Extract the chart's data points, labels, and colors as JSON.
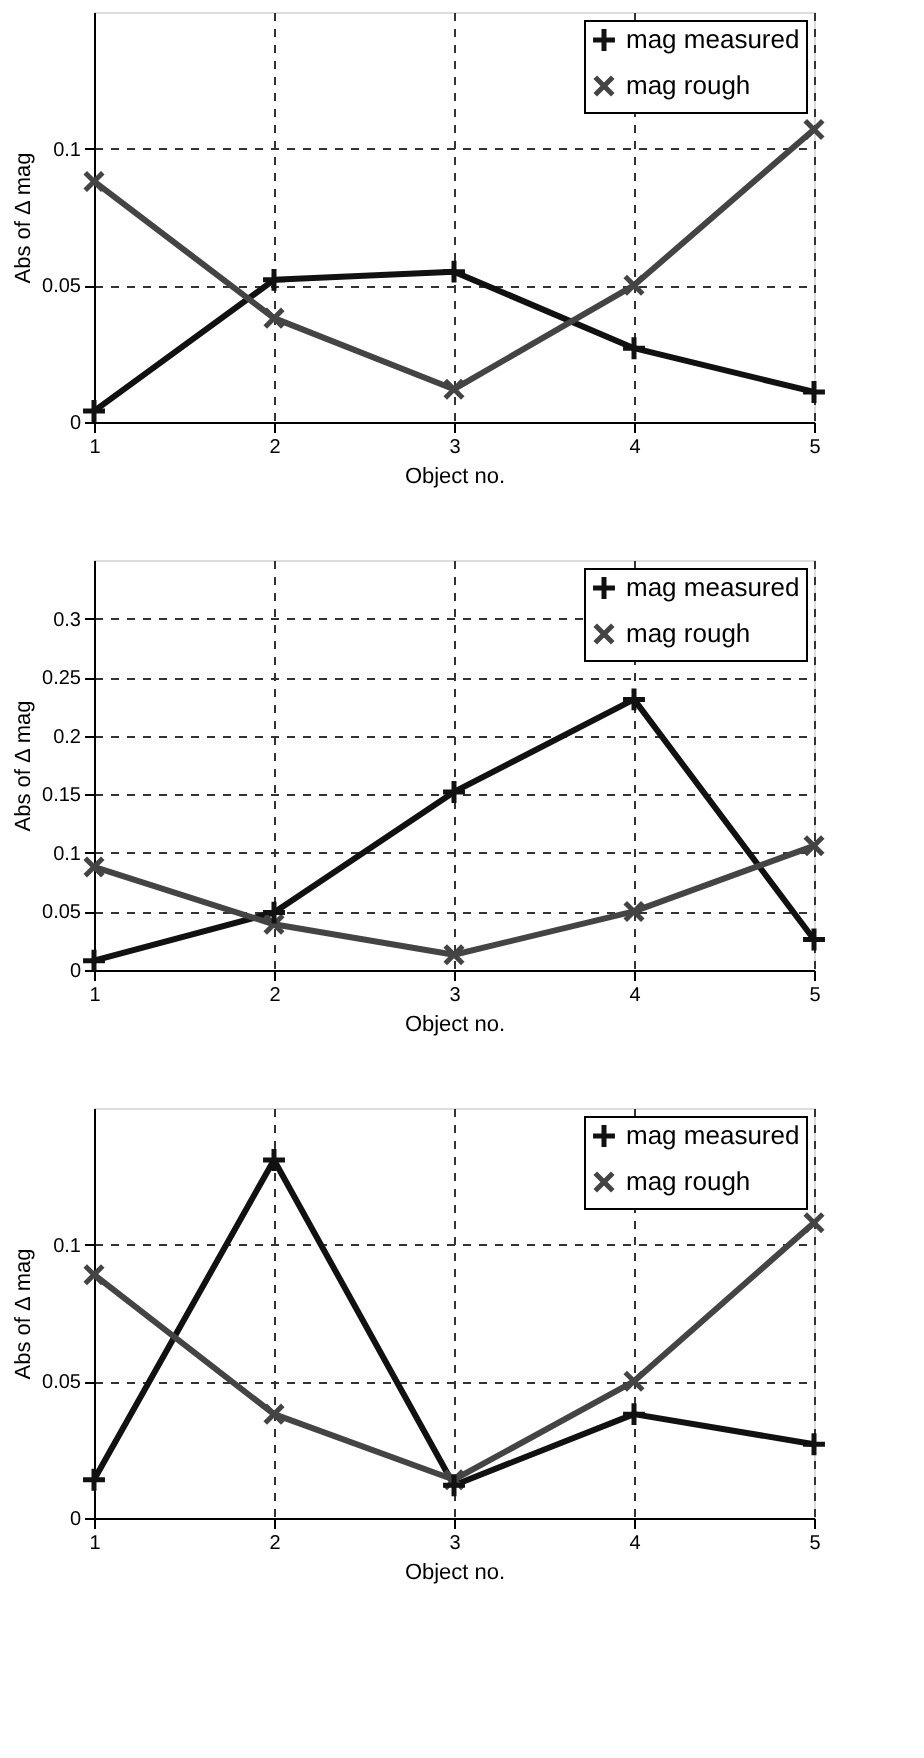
{
  "chart_data": [
    {
      "type": "line",
      "xlabel": "Object no.",
      "ylabel": "Abs of Δ mag",
      "x": [
        1,
        2,
        3,
        4,
        5
      ],
      "xlim": [
        1,
        5
      ],
      "xticks": [
        1,
        2,
        3,
        4,
        5
      ],
      "ylim": [
        0,
        0.15
      ],
      "yticks": [
        0,
        0.05,
        0.1
      ],
      "grid": true,
      "legend": "top right",
      "line_style": "solid",
      "series": [
        {
          "name": "mag measured",
          "color": "#111111",
          "marker": "cross",
          "values": [
            0.004,
            0.052,
            0.055,
            0.027,
            0.011
          ]
        },
        {
          "name": "mag rough",
          "color": "#444444",
          "marker": "x",
          "values": [
            0.088,
            0.038,
            0.012,
            0.05,
            0.107
          ]
        }
      ]
    },
    {
      "type": "line",
      "xlabel": "Object no.",
      "ylabel": "Abs of Δ mag",
      "x": [
        1,
        2,
        3,
        4,
        5
      ],
      "xlim": [
        1,
        5
      ],
      "xticks": [
        1,
        2,
        3,
        4,
        5
      ],
      "ylim": [
        0,
        0.35
      ],
      "yticks": [
        0,
        0.05,
        0.1,
        0.15,
        0.2,
        0.25,
        0.3
      ],
      "grid": true,
      "legend": "top right",
      "line_style": "solid",
      "series": [
        {
          "name": "mag measured",
          "color": "#111111",
          "marker": "cross",
          "values": [
            0.008,
            0.049,
            0.152,
            0.231,
            0.026
          ]
        },
        {
          "name": "mag rough",
          "color": "#444444",
          "marker": "x",
          "values": [
            0.088,
            0.039,
            0.013,
            0.05,
            0.106
          ]
        }
      ]
    },
    {
      "type": "line",
      "xlabel": "Object no.",
      "ylabel": "Abs of Δ mag",
      "x": [
        1,
        2,
        3,
        4,
        5
      ],
      "xlim": [
        1,
        5
      ],
      "xticks": [
        1,
        2,
        3,
        4,
        5
      ],
      "ylim": [
        0,
        0.15
      ],
      "yticks": [
        0,
        0.05,
        0.1
      ],
      "grid": true,
      "legend": "top right",
      "line_style": "solid",
      "series": [
        {
          "name": "mag measured",
          "color": "#111111",
          "marker": "cross",
          "values": [
            0.014,
            0.131,
            0.012,
            0.038,
            0.027
          ]
        },
        {
          "name": "mag rough",
          "color": "#444444",
          "marker": "x",
          "values": [
            0.089,
            0.038,
            0.014,
            0.05,
            0.108
          ]
        }
      ]
    }
  ]
}
